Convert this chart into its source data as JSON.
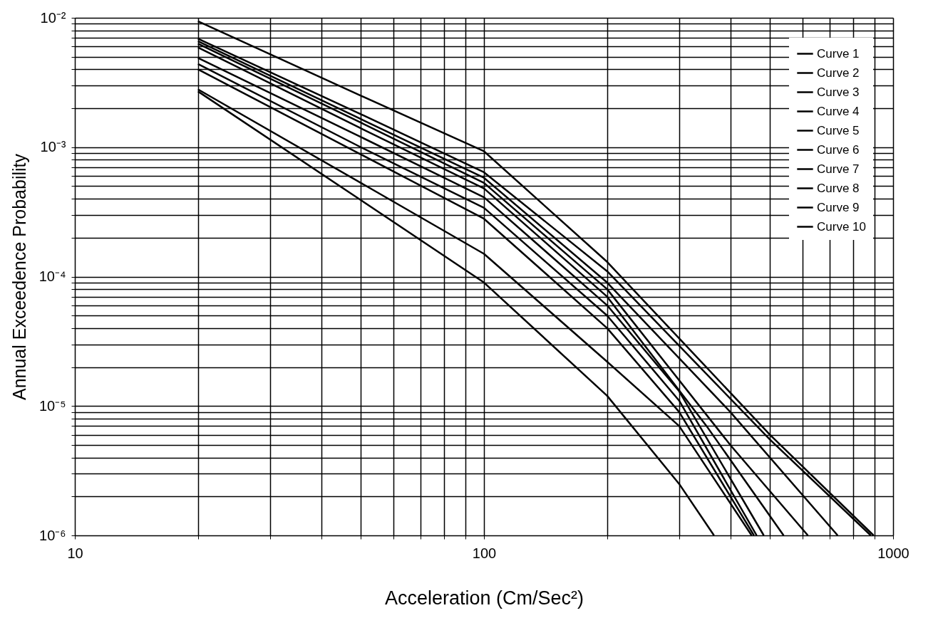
{
  "chart_data": {
    "type": "line",
    "xlabel": "Acceleration (Cm/Sec²)",
    "ylabel": "Annual Exceedence Probability",
    "log": "xy",
    "grid": true,
    "legend": "top right",
    "marker": "none",
    "line_style": "solid",
    "xlim": [
      10,
      1000
    ],
    "ylim": [
      1e-06,
      0.01
    ],
    "xticks": [
      {
        "value": 10,
        "label": "10"
      },
      {
        "value": 20,
        "label": null
      },
      {
        "value": 30,
        "label": null
      },
      {
        "value": 40,
        "label": null
      },
      {
        "value": 50,
        "label": null
      },
      {
        "value": 60,
        "label": null
      },
      {
        "value": 70,
        "label": null
      },
      {
        "value": 80,
        "label": null
      },
      {
        "value": 90,
        "label": null
      },
      {
        "value": 100,
        "label": "100"
      },
      {
        "value": 200,
        "label": null
      },
      {
        "value": 300,
        "label": null
      },
      {
        "value": 400,
        "label": null
      },
      {
        "value": 500,
        "label": null
      },
      {
        "value": 600,
        "label": null
      },
      {
        "value": 700,
        "label": null
      },
      {
        "value": 800,
        "label": null
      },
      {
        "value": 900,
        "label": null
      },
      {
        "value": 1000,
        "label": "1000"
      }
    ],
    "yticks": [
      {
        "value": 1e-06,
        "label": "10⁻⁶"
      },
      {
        "value": 2e-06,
        "label": null
      },
      {
        "value": 3e-06,
        "label": null
      },
      {
        "value": 4e-06,
        "label": null
      },
      {
        "value": 5e-06,
        "label": null
      },
      {
        "value": 6e-06,
        "label": null
      },
      {
        "value": 7e-06,
        "label": null
      },
      {
        "value": 8e-06,
        "label": null
      },
      {
        "value": 9e-06,
        "label": null
      },
      {
        "value": 1e-05,
        "label": "10⁻⁵"
      },
      {
        "value": 2e-05,
        "label": null
      },
      {
        "value": 3e-05,
        "label": null
      },
      {
        "value": 4e-05,
        "label": null
      },
      {
        "value": 5e-05,
        "label": null
      },
      {
        "value": 6e-05,
        "label": null
      },
      {
        "value": 7e-05,
        "label": null
      },
      {
        "value": 8e-05,
        "label": null
      },
      {
        "value": 9e-05,
        "label": null
      },
      {
        "value": 0.0001,
        "label": "10⁻⁴"
      },
      {
        "value": 0.0002,
        "label": null
      },
      {
        "value": 0.0003,
        "label": null
      },
      {
        "value": 0.0004,
        "label": null
      },
      {
        "value": 0.0005,
        "label": null
      },
      {
        "value": 0.0006,
        "label": null
      },
      {
        "value": 0.0007,
        "label": null
      },
      {
        "value": 0.0008,
        "label": null
      },
      {
        "value": 0.0009,
        "label": null
      },
      {
        "value": 0.001,
        "label": "10⁻³"
      },
      {
        "value": 0.002,
        "label": null
      },
      {
        "value": 0.003,
        "label": null
      },
      {
        "value": 0.004,
        "label": null
      },
      {
        "value": 0.005,
        "label": null
      },
      {
        "value": 0.006,
        "label": null
      },
      {
        "value": 0.007,
        "label": null
      },
      {
        "value": 0.008,
        "label": null
      },
      {
        "value": 0.009,
        "label": null
      },
      {
        "value": 0.01,
        "label": "10⁻²"
      }
    ],
    "series": [
      {
        "name": "Curve 1",
        "color": "#000000",
        "x": [
          20,
          50,
          100,
          200,
          500,
          896
        ],
        "values": [
          0.0094,
          0.0025,
          0.00093,
          0.00013,
          6e-06,
          1e-06
        ]
      },
      {
        "name": "Curve 2",
        "color": "#000000",
        "x": [
          20,
          50,
          100,
          200,
          500,
          882
        ],
        "values": [
          0.0069,
          0.0018,
          0.00064,
          0.00011,
          5.5e-06,
          1e-06
        ]
      },
      {
        "name": "Curve 3",
        "color": "#000000",
        "x": [
          20,
          50,
          100,
          200,
          400,
          732
        ],
        "values": [
          0.0066,
          0.00165,
          0.00058,
          9e-05,
          9e-06,
          1e-06
        ]
      },
      {
        "name": "Curve 4",
        "color": "#000000",
        "x": [
          20,
          50,
          100,
          200,
          400,
          619
        ],
        "values": [
          0.0063,
          0.00155,
          0.00053,
          8e-05,
          5e-06,
          1e-06
        ]
      },
      {
        "name": "Curve 5",
        "color": "#000000",
        "x": [
          20,
          50,
          100,
          200,
          350,
          540
        ],
        "values": [
          0.0059,
          0.0014,
          0.00048,
          7e-05,
          7e-06,
          1e-06
        ]
      },
      {
        "name": "Curve 6",
        "color": "#000000",
        "x": [
          20,
          50,
          100,
          200,
          300,
          483
        ],
        "values": [
          0.0049,
          0.0012,
          0.00041,
          6e-05,
          1.3e-05,
          1e-06
        ]
      },
      {
        "name": "Curve 7",
        "color": "#000000",
        "x": [
          20,
          50,
          100,
          200,
          300,
          464
        ],
        "values": [
          0.0044,
          0.001,
          0.00034,
          5e-05,
          1.1e-05,
          1e-06
        ]
      },
      {
        "name": "Curve 8",
        "color": "#000000",
        "x": [
          20,
          50,
          100,
          200,
          300,
          457
        ],
        "values": [
          0.004,
          0.00088,
          0.00028,
          4e-05,
          9e-06,
          1e-06
        ]
      },
      {
        "name": "Curve 9",
        "color": "#000000",
        "x": [
          20,
          50,
          100,
          200,
          300,
          451
        ],
        "values": [
          0.0028,
          0.00053,
          0.00015,
          2.2e-05,
          7e-06,
          1e-06
        ]
      },
      {
        "name": "Curve 10",
        "color": "#000000",
        "x": [
          20,
          50,
          100,
          200,
          300,
          365
        ],
        "values": [
          0.0027,
          0.00039,
          9e-05,
          1.2e-05,
          2.5e-06,
          1e-06
        ]
      }
    ]
  }
}
